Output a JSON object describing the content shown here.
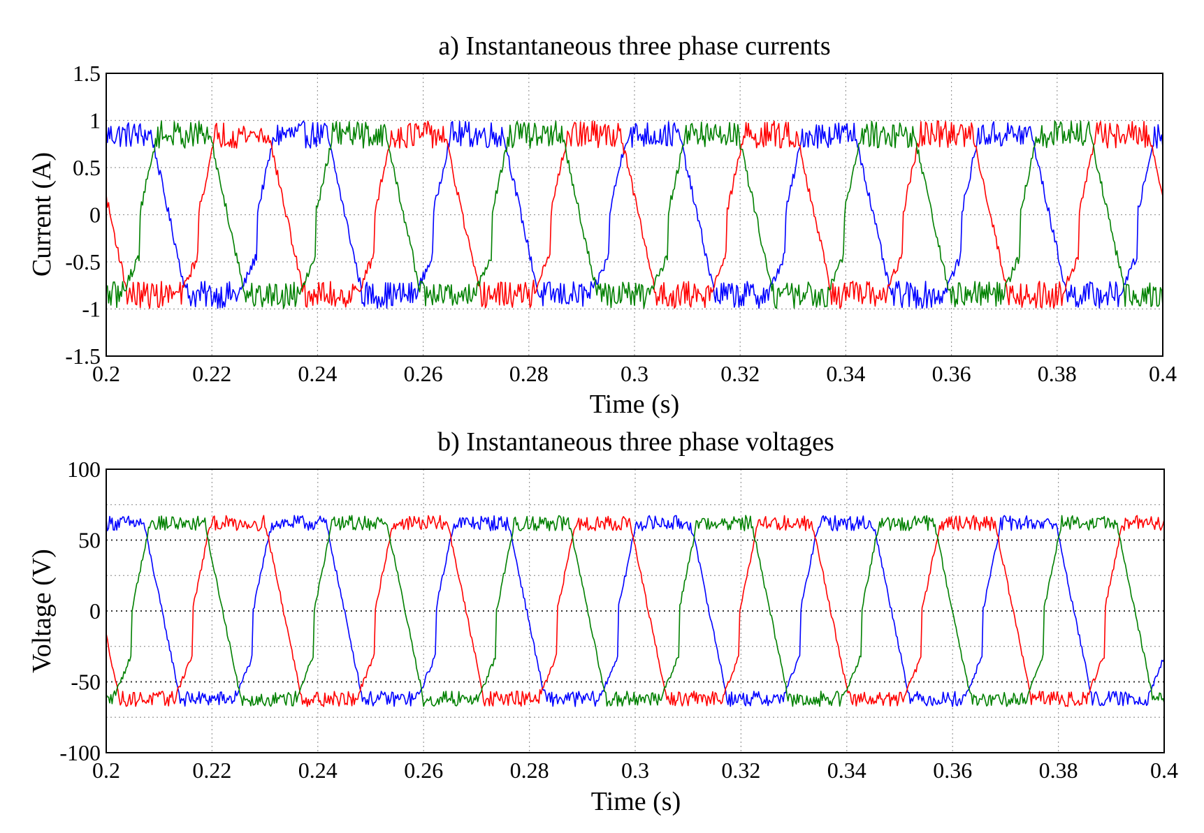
{
  "chart_data": [
    {
      "type": "line",
      "title": "a) Instantaneous three phase currents",
      "xlabel": "Time (s)",
      "ylabel": "Current (A)",
      "xlim": [
        0.2,
        0.4
      ],
      "ylim": [
        -1.5,
        1.5
      ],
      "xticks": [
        0.2,
        0.22,
        0.24,
        0.26,
        0.28,
        0.3,
        0.32,
        0.34,
        0.36,
        0.38,
        0.4
      ],
      "xtick_labels": [
        "0.2",
        "0.22",
        "0.24",
        "0.26",
        "0.28",
        "0.3",
        "0.32",
        "0.34",
        "0.36",
        "0.38",
        "0.4"
      ],
      "yticks": [
        -1.5,
        -1,
        -0.5,
        0,
        0.5,
        1,
        1.5
      ],
      "ytick_labels": [
        "-1.5",
        "-1",
        "-0.5",
        "0",
        "0.5",
        "1",
        "1.5"
      ],
      "grid": true,
      "waveform": {
        "frequency_hz": 30,
        "amplitude": 0.85,
        "ripple": 0.08,
        "shape": "trapezoidal"
      },
      "series": [
        {
          "name": "blue",
          "color": "#0000ff",
          "phase_deg": 52
        },
        {
          "name": "red",
          "color": "#ff0000",
          "phase_deg": 172
        },
        {
          "name": "green",
          "color": "#008000",
          "phase_deg": 292
        }
      ]
    },
    {
      "type": "line",
      "title": "b) Instantaneous three phase voltages",
      "xlabel": "Time (s)",
      "ylabel": "Voltage (V)",
      "xlim": [
        0.2,
        0.4
      ],
      "ylim": [
        -100,
        100
      ],
      "xticks": [
        0.2,
        0.22,
        0.24,
        0.26,
        0.28,
        0.3,
        0.32,
        0.34,
        0.36,
        0.38,
        0.4
      ],
      "xtick_labels": [
        "0.2",
        "0.22",
        "0.24",
        "0.26",
        "0.28",
        "0.3",
        "0.32",
        "0.34",
        "0.36",
        "0.38",
        "0.4"
      ],
      "yticks": [
        -100,
        -50,
        0,
        50,
        100
      ],
      "ytick_labels": [
        "-100",
        "-50",
        "0",
        "50",
        "100"
      ],
      "minor_gridlines_y": [
        -75,
        -25,
        25,
        75
      ],
      "grid": true,
      "waveform": {
        "frequency_hz": 29,
        "amplitude": 62,
        "ripple": 3,
        "shape": "trapezoidal"
      },
      "series": [
        {
          "name": "blue",
          "color": "#0000ff",
          "phase_deg": 70
        },
        {
          "name": "red",
          "color": "#ff0000",
          "phase_deg": 190
        },
        {
          "name": "green",
          "color": "#008000",
          "phase_deg": 310
        }
      ]
    }
  ]
}
